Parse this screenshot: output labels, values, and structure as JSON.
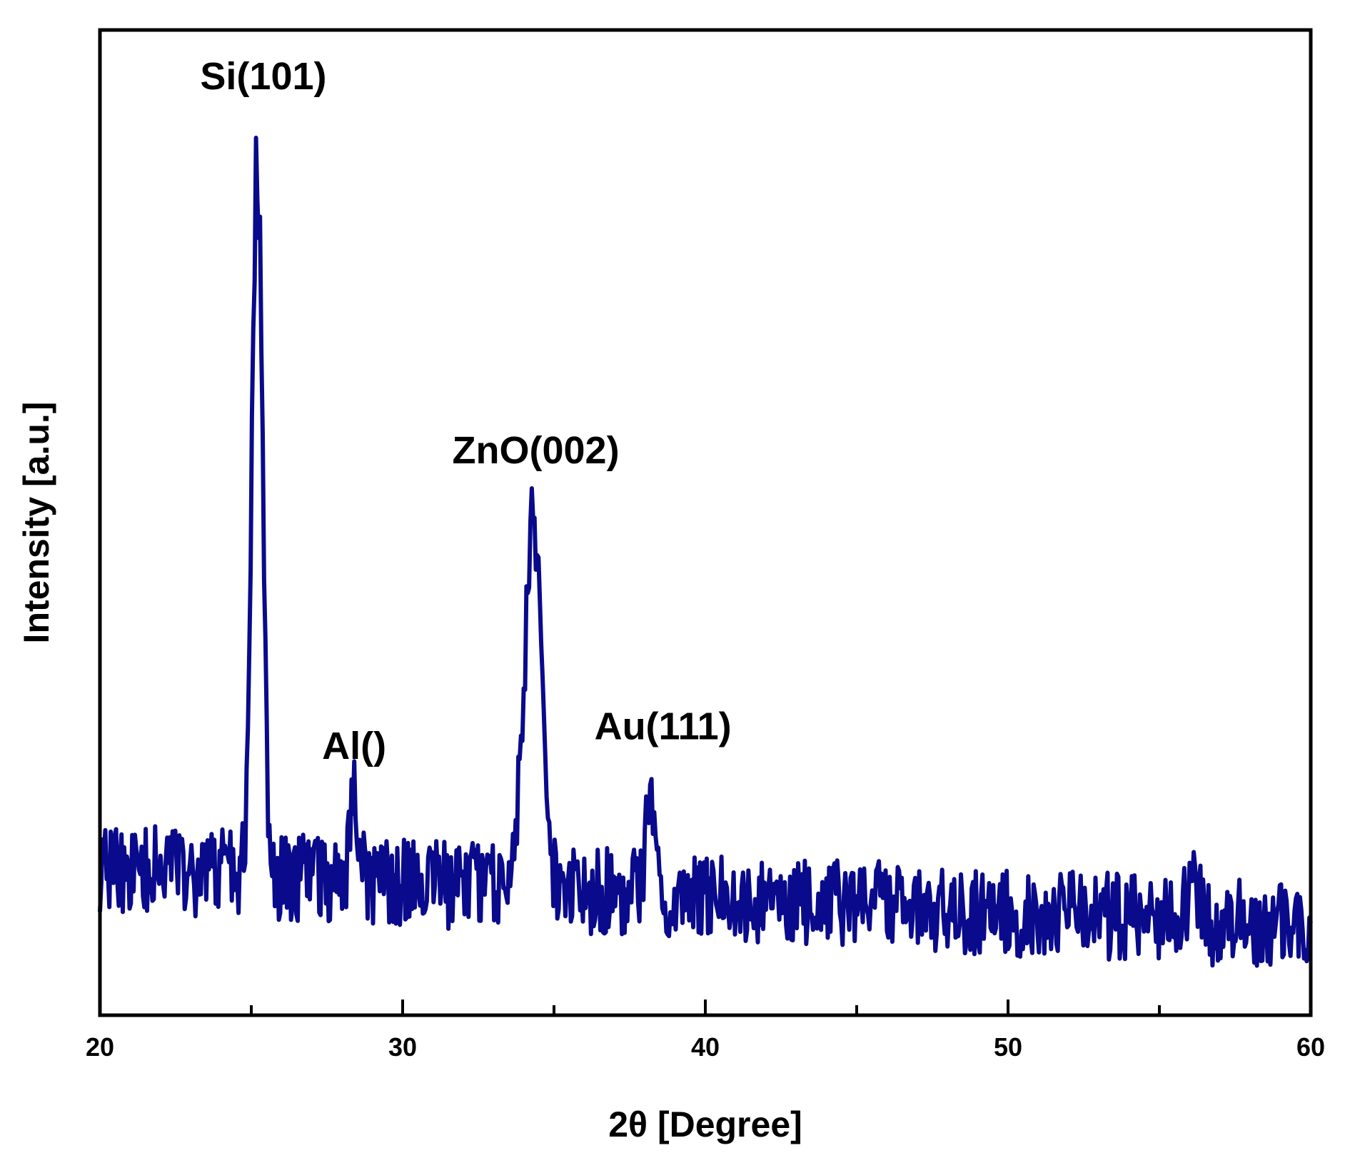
{
  "chart_data": {
    "type": "line",
    "title": "",
    "xlabel": "2θ [Degree]",
    "ylabel": "Intensity [a.u.]",
    "xlim": [
      20,
      60
    ],
    "ylim": [
      0,
      100
    ],
    "x_ticks": [
      20,
      30,
      40,
      50,
      60
    ],
    "x_minor_ticks": [
      25,
      35,
      45,
      55
    ],
    "y_tick_labels": false,
    "grid": false,
    "legend": "none",
    "line_color": "#0a0a8c",
    "background": "baseline with noise amplitude about 4 to 5 a.u.; baseline about 15 a.u. near 2θ=20 falling to about 9 a.u. at 2θ=60",
    "peaks": [
      {
        "label": "Si(101)",
        "x": 25.2,
        "y": 89
      },
      {
        "label": "Al()",
        "x": 28.4,
        "y": 23
      },
      {
        "label": "ZnO(002)",
        "x": 34.3,
        "y": 51
      },
      {
        "label": "Au(111)",
        "x": 38.2,
        "y": 24
      },
      {
        "label": "",
        "x": 56.1,
        "y": 16
      }
    ],
    "annotations": [
      {
        "text": "Si(101)",
        "x": 25.4,
        "y": 94
      },
      {
        "text": "Al()",
        "x": 28.4,
        "y": 26
      },
      {
        "text": "ZnO(002)",
        "x": 34.4,
        "y": 56
      },
      {
        "text": "Au(111)",
        "x": 38.6,
        "y": 28
      }
    ]
  }
}
